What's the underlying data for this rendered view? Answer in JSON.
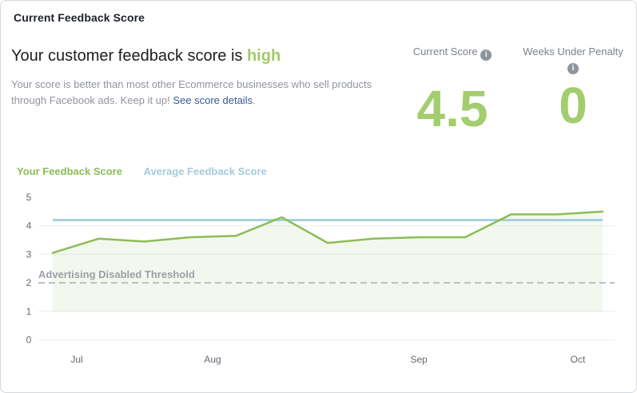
{
  "card": {
    "title": "Current Feedback Score",
    "headline_prefix": "Your customer feedback score is ",
    "headline_status": "high",
    "description_before_link": "Your score is better than most other Ecommerce businesses who sell products through Facebook ads. Keep it up! ",
    "description_link": "See score details",
    "description_after_link": "."
  },
  "stats": [
    {
      "label": "Current Score",
      "value": "4.5",
      "icon": "info-icon",
      "value_color": "#a3cd6e"
    },
    {
      "label": "Weeks Under Penalty",
      "value": "0",
      "icon": "info-icon",
      "value_color": "#a3cd6e"
    }
  ],
  "legend": [
    {
      "label": "Your Feedback Score",
      "color": "#8cbd58"
    },
    {
      "label": "Average Feedback Score",
      "color": "#a5cbdc"
    }
  ],
  "chart_data": {
    "type": "line",
    "title": "",
    "xlabel": "",
    "ylabel": "",
    "ylim": [
      0,
      5
    ],
    "y_ticks": [
      0,
      1,
      2,
      3,
      4,
      5
    ],
    "gridlines_at": [
      0,
      1,
      3,
      4
    ],
    "grid": true,
    "legend_position": "top-left",
    "x_tick_labels": [
      "Jul",
      "Aug",
      "Sep",
      "Oct"
    ],
    "x_unit": "weekly points, Jul through Oct",
    "series": [
      {
        "name": "Your Feedback Score",
        "color": "#8cbd58",
        "fill_below_to": 1,
        "values": [
          3.05,
          3.55,
          3.45,
          3.6,
          3.65,
          4.3,
          3.4,
          3.55,
          3.6,
          3.6,
          4.4,
          4.4,
          4.5
        ]
      },
      {
        "name": "Average Feedback Score",
        "color": "#a9cfe0",
        "constant_value": 4.2
      }
    ],
    "threshold": {
      "label": "Advertising Disabled Threshold",
      "value": 2
    }
  }
}
